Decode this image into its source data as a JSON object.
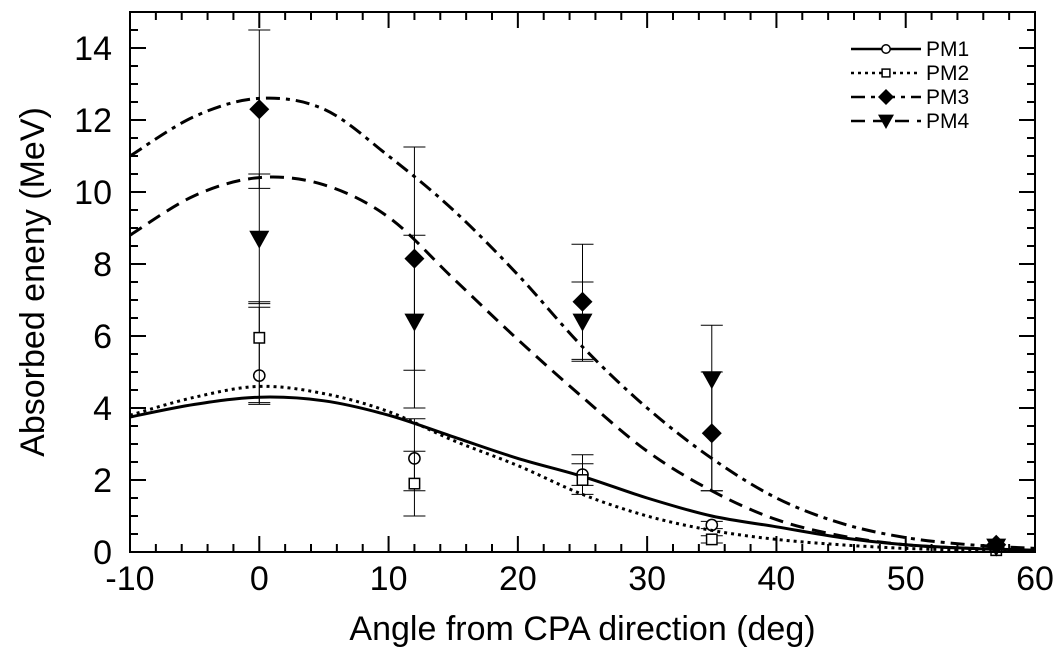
{
  "chart_data": {
    "type": "scatter",
    "title": "",
    "xlabel": "Angle from CPA direction (deg)",
    "ylabel": "Absorbed eneny (MeV)",
    "xlim": [
      -10,
      60
    ],
    "ylim": [
      0,
      15
    ],
    "xticks": [
      "-10",
      "0",
      "10",
      "20",
      "30",
      "40",
      "50",
      "60"
    ],
    "yticks": [
      "0",
      "2",
      "4",
      "6",
      "8",
      "10",
      "12",
      "14"
    ],
    "grid": false,
    "legend_position": "top-right",
    "series": [
      {
        "name": "PM1",
        "marker": "open-circle",
        "line_style": "solid",
        "points": [
          {
            "x": 0,
            "y": 4.9,
            "err_low": 0.8,
            "err_high": 1.9
          },
          {
            "x": 12,
            "y": 2.6,
            "err_low": 0.9,
            "err_high": 1.1
          },
          {
            "x": 25,
            "y": 2.15,
            "err_low": 0.3,
            "err_high": 0.3
          },
          {
            "x": 35,
            "y": 0.75,
            "err_low": 0.1,
            "err_high": 0.1
          },
          {
            "x": 57,
            "y": 0.1,
            "err_low": 0.0,
            "err_high": 0.0
          }
        ],
        "curve": [
          {
            "x": -10,
            "y": 3.75
          },
          {
            "x": -5,
            "y": 4.1
          },
          {
            "x": 0,
            "y": 4.3
          },
          {
            "x": 5,
            "y": 4.2
          },
          {
            "x": 10,
            "y": 3.8
          },
          {
            "x": 15,
            "y": 3.2
          },
          {
            "x": 20,
            "y": 2.6
          },
          {
            "x": 25,
            "y": 2.1
          },
          {
            "x": 30,
            "y": 1.5
          },
          {
            "x": 35,
            "y": 1.0
          },
          {
            "x": 40,
            "y": 0.7
          },
          {
            "x": 45,
            "y": 0.4
          },
          {
            "x": 50,
            "y": 0.2
          },
          {
            "x": 55,
            "y": 0.1
          },
          {
            "x": 60,
            "y": 0.05
          }
        ]
      },
      {
        "name": "PM2",
        "marker": "open-square",
        "line_style": "dotted",
        "points": [
          {
            "x": 0,
            "y": 5.95,
            "err_low": 1.8,
            "err_high": 1.0
          },
          {
            "x": 12,
            "y": 1.9,
            "err_low": 0.9,
            "err_high": 0.9
          },
          {
            "x": 25,
            "y": 2.0,
            "err_low": 0.4,
            "err_high": 0.7
          },
          {
            "x": 35,
            "y": 0.35,
            "err_low": 0.1,
            "err_high": 0.1
          },
          {
            "x": 57,
            "y": 0.05,
            "err_low": 0.0,
            "err_high": 0.0
          }
        ],
        "curve": [
          {
            "x": -10,
            "y": 3.8
          },
          {
            "x": -5,
            "y": 4.3
          },
          {
            "x": 0,
            "y": 4.6
          },
          {
            "x": 5,
            "y": 4.4
          },
          {
            "x": 10,
            "y": 3.9
          },
          {
            "x": 15,
            "y": 3.1
          },
          {
            "x": 20,
            "y": 2.4
          },
          {
            "x": 25,
            "y": 1.6
          },
          {
            "x": 30,
            "y": 1.0
          },
          {
            "x": 35,
            "y": 0.6
          },
          {
            "x": 40,
            "y": 0.35
          },
          {
            "x": 45,
            "y": 0.2
          },
          {
            "x": 50,
            "y": 0.1
          },
          {
            "x": 55,
            "y": 0.05
          },
          {
            "x": 60,
            "y": 0.02
          }
        ]
      },
      {
        "name": "PM3",
        "marker": "filled-diamond",
        "line_style": "dash-dot",
        "points": [
          {
            "x": 0,
            "y": 12.3,
            "err_low": 2.2,
            "err_high": 2.2
          },
          {
            "x": 12,
            "y": 8.15,
            "err_low": 3.1,
            "err_high": 3.1
          },
          {
            "x": 25,
            "y": 6.95,
            "err_low": 1.6,
            "err_high": 1.6
          },
          {
            "x": 35,
            "y": 3.3,
            "err_low": 1.6,
            "err_high": 3.0
          },
          {
            "x": 57,
            "y": 0.2,
            "err_low": 0.0,
            "err_high": 0.0
          }
        ],
        "curve": [
          {
            "x": -10,
            "y": 11.0
          },
          {
            "x": -5,
            "y": 12.1
          },
          {
            "x": 0,
            "y": 12.6
          },
          {
            "x": 5,
            "y": 12.3
          },
          {
            "x": 10,
            "y": 11.0
          },
          {
            "x": 15,
            "y": 9.5
          },
          {
            "x": 20,
            "y": 7.7
          },
          {
            "x": 25,
            "y": 5.7
          },
          {
            "x": 30,
            "y": 4.0
          },
          {
            "x": 35,
            "y": 2.6
          },
          {
            "x": 40,
            "y": 1.5
          },
          {
            "x": 45,
            "y": 0.8
          },
          {
            "x": 50,
            "y": 0.4
          },
          {
            "x": 55,
            "y": 0.2
          },
          {
            "x": 60,
            "y": 0.1
          }
        ]
      },
      {
        "name": "PM4",
        "marker": "filled-triangle-down",
        "line_style": "dashed",
        "points": [
          {
            "x": 0,
            "y": 8.7,
            "err_low": 1.8,
            "err_high": 1.8
          },
          {
            "x": 12,
            "y": 6.4,
            "err_low": 2.4,
            "err_high": 2.4
          },
          {
            "x": 25,
            "y": 6.4,
            "err_low": 1.1,
            "err_high": 1.1
          },
          {
            "x": 35,
            "y": 4.8,
            "err_low": 3.1,
            "err_high": 0.2
          },
          {
            "x": 57,
            "y": 0.15,
            "err_low": 0.0,
            "err_high": 0.0
          }
        ],
        "curve": [
          {
            "x": -10,
            "y": 8.8
          },
          {
            "x": -5,
            "y": 9.9
          },
          {
            "x": 0,
            "y": 10.4
          },
          {
            "x": 5,
            "y": 10.2
          },
          {
            "x": 10,
            "y": 9.3
          },
          {
            "x": 15,
            "y": 7.6
          },
          {
            "x": 20,
            "y": 5.9
          },
          {
            "x": 25,
            "y": 4.3
          },
          {
            "x": 30,
            "y": 2.8
          },
          {
            "x": 35,
            "y": 1.7
          },
          {
            "x": 40,
            "y": 0.9
          },
          {
            "x": 45,
            "y": 0.45
          },
          {
            "x": 50,
            "y": 0.2
          },
          {
            "x": 55,
            "y": 0.1
          },
          {
            "x": 60,
            "y": 0.05
          }
        ]
      }
    ]
  }
}
